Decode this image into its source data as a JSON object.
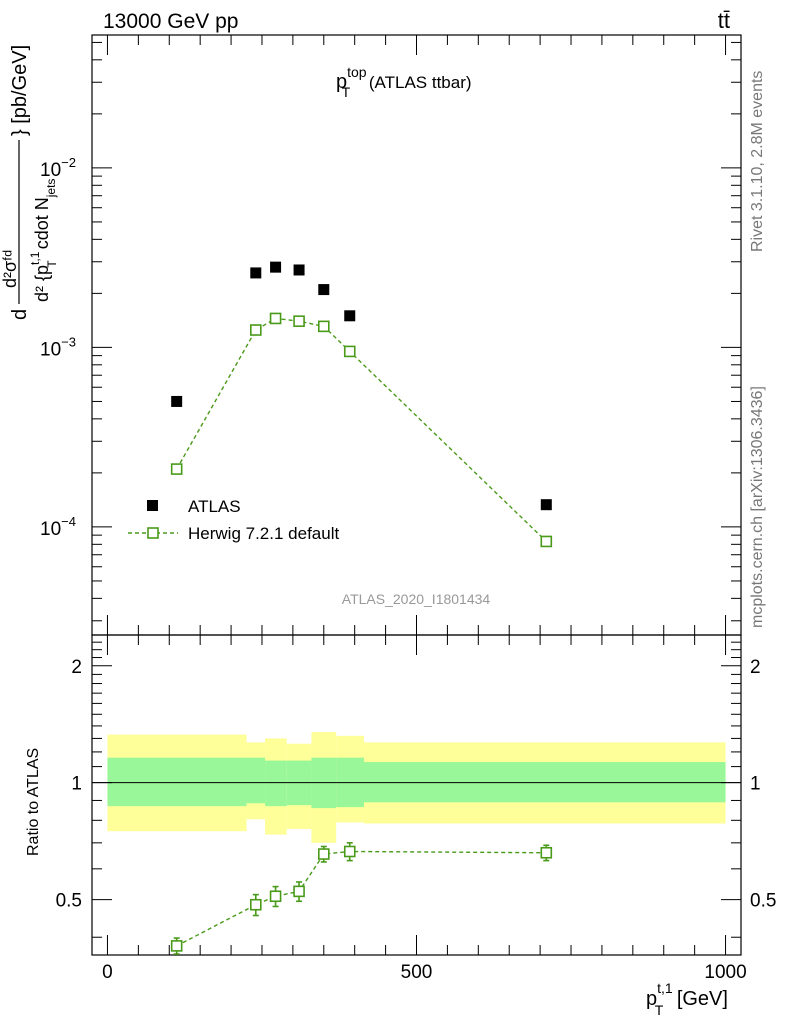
{
  "header": {
    "energy_label": "13000 GeV pp",
    "process_label": "tt̄"
  },
  "plot_title": {
    "main": "p",
    "sup": "top",
    "sub": "T",
    "suffix": " (ATLAS ttbar)"
  },
  "side_labels": {
    "rivet": "Rivet 3.1.10,  2.8M events",
    "mcplots": "mcplots.cern.ch [arXiv:1306.3436]"
  },
  "watermark": "ATLAS_2020_I1801434",
  "y_axis_main": {
    "label_num": "d²σᶠᵈ",
    "label_den": "d²{p_T^{t,1} cdot N_jets}",
    "label_den_text": "d² {p",
    "label_den_sup": "t,1",
    "label_den_sub": "T",
    "label_den_rest": " cdot N",
    "label_den_sub2": "jets",
    "label_unit": "} [pb/GeV]",
    "tick_labels": [
      {
        "base": "10",
        "exp": "−2",
        "value": 0.01
      },
      {
        "base": "10",
        "exp": "−3",
        "value": 0.001
      },
      {
        "base": "10",
        "exp": "−4",
        "value": 0.0001
      }
    ]
  },
  "y_axis_ratio": {
    "label": "Ratio to ATLAS",
    "tick_labels": [
      "0.5",
      "1",
      "2"
    ]
  },
  "x_axis": {
    "label_p": "p",
    "label_sup": "t,1",
    "label_sub": "T",
    "label_unit": " [GeV]",
    "tick_labels": [
      "0",
      "500",
      "1000"
    ]
  },
  "legend": {
    "data_label": "ATLAS",
    "mc_label": "Herwig 7.2.1 default"
  },
  "colors": {
    "mc": "#4a9a1a",
    "band_inner": "#99f799",
    "band_outer": "#ffff99",
    "data": "#000000"
  },
  "chart_data": [
    {
      "type": "scatter",
      "title": "p_T^top (ATLAS ttbar)",
      "xlabel": "p_T^{t,1} [GeV]",
      "ylabel": "d²σ / d²{p_T^{t,1} cdot N_jets} [pb/GeV]",
      "xlim": [
        -25,
        1025
      ],
      "ylim": [
        2.5e-05,
        0.055
      ],
      "yscale": "log",
      "series": [
        {
          "name": "ATLAS",
          "x": [
            112,
            240,
            272,
            310,
            350,
            392,
            710
          ],
          "y": [
            0.0005,
            0.0026,
            0.0028,
            0.0027,
            0.0021,
            0.0015,
            0.000133
          ]
        },
        {
          "name": "Herwig 7.2.1 default",
          "x": [
            112,
            240,
            272,
            310,
            350,
            392,
            710
          ],
          "y": [
            0.00021,
            0.00125,
            0.00145,
            0.0014,
            0.00131,
            0.00095,
            8.3e-05
          ]
        }
      ]
    },
    {
      "type": "scatter",
      "ylabel": "Ratio to ATLAS",
      "xlim": [
        -25,
        1025
      ],
      "ylim": [
        0.36,
        2.4
      ],
      "yscale": "log",
      "series": [
        {
          "name": "Herwig 7.2.1 default",
          "x": [
            112,
            240,
            272,
            310,
            350,
            392,
            710
          ],
          "y": [
            0.38,
            0.485,
            0.51,
            0.525,
            0.655,
            0.665,
            0.66
          ],
          "err": [
            0.018,
            0.03,
            0.03,
            0.03,
            0.03,
            0.035,
            0.03
          ]
        }
      ],
      "bands": {
        "edges": [
          0,
          225,
          255,
          290,
          330,
          370,
          415,
          1000
        ],
        "inner_low": [
          0.87,
          0.885,
          0.87,
          0.875,
          0.86,
          0.865,
          0.89
        ],
        "inner_high": [
          1.16,
          1.16,
          1.14,
          1.14,
          1.16,
          1.16,
          1.13
        ],
        "outer_low": [
          0.75,
          0.805,
          0.735,
          0.76,
          0.7,
          0.79,
          0.785
        ],
        "outer_high": [
          1.33,
          1.27,
          1.3,
          1.26,
          1.35,
          1.32,
          1.27
        ]
      }
    }
  ]
}
